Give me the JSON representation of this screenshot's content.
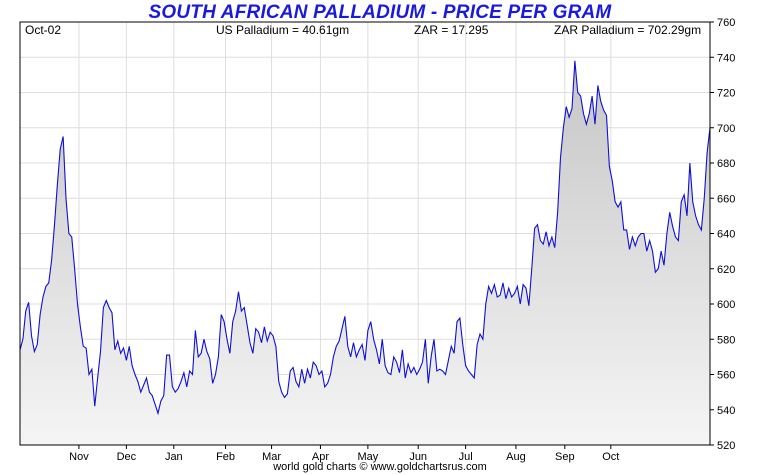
{
  "chart_data": {
    "type": "area",
    "title": "SOUTH AFRICAN PALLADIUM - PRICE PER GRAM",
    "header": {
      "left": "Oct-02",
      "us": "US Palladium = 40.61gm",
      "zar": "ZAR = 17.295",
      "zar_pd": "ZAR Palladium = 702.29gm"
    },
    "footer": "world gold charts © www.goldchartsrus.com",
    "ylim": [
      520,
      760
    ],
    "y_ticks": [
      520,
      540,
      560,
      580,
      600,
      620,
      640,
      660,
      680,
      700,
      720,
      740,
      760
    ],
    "y_tick_labels": [
      "520",
      "540",
      "560",
      "580",
      "600",
      "620",
      "640",
      "660",
      "680",
      "700",
      "720",
      "740",
      "760"
    ],
    "x_range": [
      0,
      240
    ],
    "x_ticks": [
      {
        "label": "Nov",
        "x": 20.5
      },
      {
        "label": "Dec",
        "x": 37
      },
      {
        "label": "Jan",
        "x": 53.5
      },
      {
        "label": "Feb",
        "x": 71.5
      },
      {
        "label": "Mar",
        "x": 87.5
      },
      {
        "label": "Apr",
        "x": 104.5
      },
      {
        "label": "May",
        "x": 121
      },
      {
        "label": "Jun",
        "x": 138.5
      },
      {
        "label": "Jul",
        "x": 155
      },
      {
        "label": "Aug",
        "x": 172.5
      },
      {
        "label": "Sep",
        "x": 189.5
      },
      {
        "label": "Oct",
        "x": 205.5
      }
    ],
    "grid": true,
    "colors": {
      "line": "#1010d0",
      "fill_top": "#c8c8c8",
      "fill_bottom": "#f4f4f4",
      "grid": "#dedede"
    },
    "series": [
      {
        "values": [
          [
            0,
            574
          ],
          [
            1,
            580
          ],
          [
            2,
            596
          ],
          [
            3,
            601
          ],
          [
            4,
            582
          ],
          [
            5,
            573
          ],
          [
            6,
            577
          ],
          [
            7,
            594
          ],
          [
            8,
            604
          ],
          [
            9,
            610
          ],
          [
            10,
            612
          ],
          [
            11,
            625
          ],
          [
            12,
            645
          ],
          [
            13,
            668
          ],
          [
            14,
            688
          ],
          [
            15,
            695
          ],
          [
            16,
            660
          ],
          [
            17,
            640
          ],
          [
            18,
            638
          ],
          [
            19,
            620
          ],
          [
            20,
            600
          ],
          [
            21,
            587
          ],
          [
            22,
            576
          ],
          [
            23,
            575
          ],
          [
            24,
            560
          ],
          [
            25,
            563
          ],
          [
            26,
            542
          ],
          [
            27,
            558
          ],
          [
            28,
            573
          ],
          [
            29,
            598
          ],
          [
            30,
            602
          ],
          [
            31,
            598
          ],
          [
            32,
            595
          ],
          [
            33,
            574
          ],
          [
            34,
            579
          ],
          [
            35,
            572
          ],
          [
            36,
            575
          ],
          [
            37,
            568
          ],
          [
            38,
            576
          ],
          [
            39,
            565
          ],
          [
            40,
            560
          ],
          [
            41,
            556
          ],
          [
            42,
            550
          ],
          [
            43,
            554
          ],
          [
            44,
            558
          ],
          [
            45,
            550
          ],
          [
            46,
            548
          ],
          [
            47,
            543
          ],
          [
            48,
            538
          ],
          [
            49,
            545
          ],
          [
            50,
            548
          ],
          [
            51,
            571
          ],
          [
            52,
            571
          ],
          [
            53,
            553
          ],
          [
            54,
            550
          ],
          [
            55,
            552
          ],
          [
            56,
            556
          ],
          [
            57,
            561
          ],
          [
            58,
            553
          ],
          [
            59,
            562
          ],
          [
            60,
            560
          ],
          [
            61,
            585
          ],
          [
            62,
            570
          ],
          [
            63,
            572
          ],
          [
            64,
            580
          ],
          [
            65,
            573
          ],
          [
            66,
            569
          ],
          [
            67,
            555
          ],
          [
            68,
            560
          ],
          [
            69,
            570
          ],
          [
            70,
            594
          ],
          [
            71,
            590
          ],
          [
            72,
            580
          ],
          [
            73,
            572
          ],
          [
            74,
            590
          ],
          [
            75,
            596
          ],
          [
            76,
            607
          ],
          [
            77,
            596
          ],
          [
            78,
            598
          ],
          [
            79,
            588
          ],
          [
            80,
            578
          ],
          [
            81,
            572
          ],
          [
            82,
            586
          ],
          [
            83,
            584
          ],
          [
            84,
            578
          ],
          [
            85,
            587
          ],
          [
            86,
            579
          ],
          [
            87,
            584
          ],
          [
            88,
            582
          ],
          [
            89,
            576
          ],
          [
            90,
            556
          ],
          [
            91,
            550
          ],
          [
            92,
            547
          ],
          [
            93,
            549
          ],
          [
            94,
            562
          ],
          [
            95,
            564
          ],
          [
            96,
            556
          ],
          [
            97,
            553
          ],
          [
            98,
            563
          ],
          [
            99,
            555
          ],
          [
            100,
            563
          ],
          [
            101,
            558
          ],
          [
            102,
            567
          ],
          [
            103,
            565
          ],
          [
            104,
            560
          ],
          [
            105,
            562
          ],
          [
            106,
            553
          ],
          [
            107,
            555
          ],
          [
            108,
            560
          ],
          [
            109,
            570
          ],
          [
            110,
            576
          ],
          [
            111,
            579
          ],
          [
            112,
            586
          ],
          [
            113,
            593
          ],
          [
            114,
            576
          ],
          [
            115,
            570
          ],
          [
            116,
            578
          ],
          [
            117,
            570
          ],
          [
            118,
            574
          ],
          [
            119,
            577
          ],
          [
            120,
            568
          ],
          [
            121,
            585
          ],
          [
            122,
            590
          ],
          [
            123,
            580
          ],
          [
            124,
            574
          ],
          [
            125,
            566
          ],
          [
            126,
            580
          ],
          [
            127,
            565
          ],
          [
            128,
            561
          ],
          [
            129,
            560
          ],
          [
            130,
            570
          ],
          [
            131,
            567
          ],
          [
            132,
            561
          ],
          [
            133,
            574
          ],
          [
            134,
            558
          ],
          [
            135,
            566
          ],
          [
            136,
            561
          ],
          [
            137,
            564
          ],
          [
            138,
            560
          ],
          [
            139,
            563
          ],
          [
            140,
            567
          ],
          [
            141,
            580
          ],
          [
            142,
            555
          ],
          [
            143,
            570
          ],
          [
            144,
            580
          ],
          [
            145,
            562
          ],
          [
            146,
            563
          ],
          [
            147,
            562
          ],
          [
            148,
            560
          ],
          [
            149,
            568
          ],
          [
            150,
            576
          ],
          [
            151,
            572
          ],
          [
            152,
            590
          ],
          [
            153,
            592
          ],
          [
            154,
            577
          ],
          [
            155,
            565
          ],
          [
            156,
            562
          ],
          [
            157,
            560
          ],
          [
            158,
            558
          ],
          [
            159,
            577
          ],
          [
            160,
            583
          ],
          [
            161,
            580
          ],
          [
            162,
            600
          ],
          [
            163,
            610
          ],
          [
            164,
            606
          ],
          [
            165,
            611
          ],
          [
            166,
            604
          ],
          [
            167,
            605
          ],
          [
            168,
            612
          ],
          [
            169,
            603
          ],
          [
            170,
            609
          ],
          [
            171,
            604
          ],
          [
            172,
            606
          ],
          [
            173,
            610
          ],
          [
            174,
            600
          ],
          [
            175,
            611
          ],
          [
            176,
            609
          ],
          [
            177,
            599
          ],
          [
            178,
            620
          ],
          [
            179,
            643
          ],
          [
            180,
            645
          ],
          [
            181,
            636
          ],
          [
            182,
            634
          ],
          [
            183,
            641
          ],
          [
            184,
            633
          ],
          [
            185,
            638
          ],
          [
            186,
            632
          ],
          [
            187,
            652
          ],
          [
            188,
            683
          ],
          [
            189,
            700
          ],
          [
            190,
            712
          ],
          [
            191,
            706
          ],
          [
            192,
            711
          ],
          [
            193,
            738
          ],
          [
            194,
            720
          ],
          [
            195,
            718
          ],
          [
            196,
            708
          ],
          [
            197,
            702
          ],
          [
            198,
            708
          ],
          [
            199,
            718
          ],
          [
            200,
            702
          ],
          [
            201,
            724
          ],
          [
            202,
            715
          ],
          [
            203,
            710
          ],
          [
            204,
            707
          ],
          [
            205,
            678
          ],
          [
            206,
            670
          ],
          [
            207,
            658
          ],
          [
            208,
            655
          ],
          [
            209,
            658
          ],
          [
            210,
            642
          ],
          [
            211,
            642
          ],
          [
            212,
            631
          ],
          [
            213,
            638
          ],
          [
            214,
            633
          ],
          [
            215,
            638
          ],
          [
            216,
            640
          ],
          [
            217,
            640
          ],
          [
            218,
            630
          ],
          [
            219,
            636
          ],
          [
            220,
            630
          ],
          [
            221,
            618
          ],
          [
            222,
            620
          ],
          [
            223,
            630
          ],
          [
            224,
            622
          ],
          [
            225,
            640
          ],
          [
            226,
            652
          ],
          [
            227,
            644
          ],
          [
            228,
            638
          ],
          [
            229,
            636
          ],
          [
            230,
            658
          ],
          [
            231,
            662
          ],
          [
            232,
            650
          ],
          [
            233,
            680
          ],
          [
            234,
            658
          ],
          [
            235,
            650
          ],
          [
            236,
            645
          ],
          [
            237,
            642
          ],
          [
            238,
            660
          ],
          [
            239,
            686
          ],
          [
            240,
            700
          ]
        ]
      }
    ]
  }
}
